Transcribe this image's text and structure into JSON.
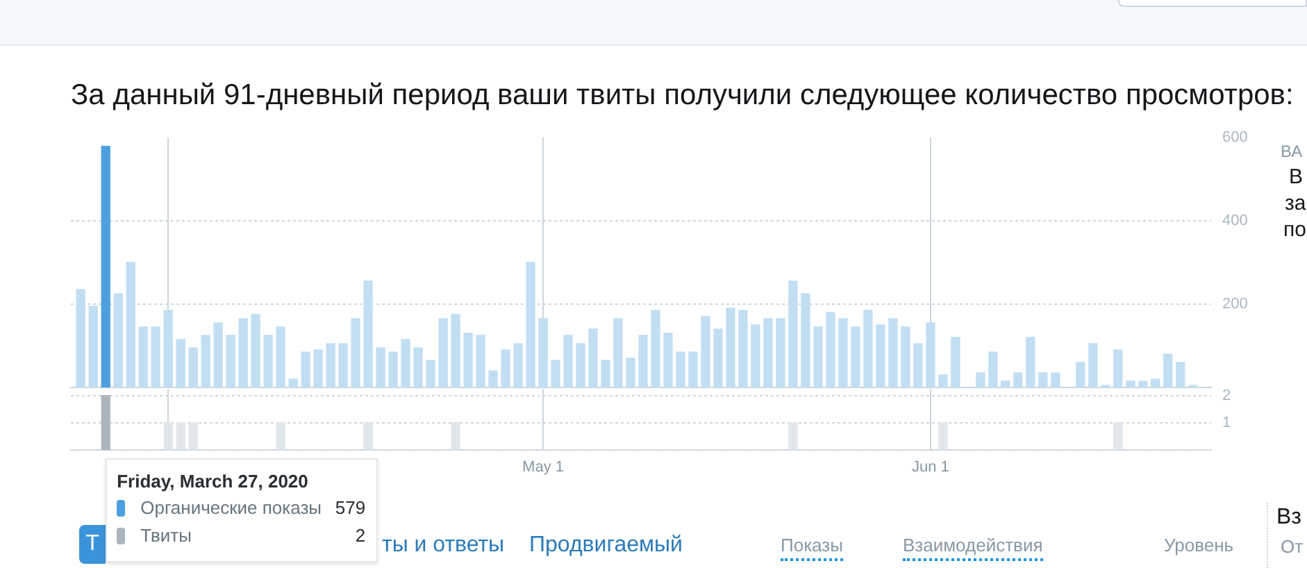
{
  "chart_data": [
    {
      "type": "bar",
      "title": "За данный 91-дневный период ваши твиты получили следующее количество просмотров:",
      "x": [
        "2020-03-25",
        "2020-03-26",
        "2020-03-27",
        "2020-03-28",
        "2020-03-29",
        "2020-03-30",
        "2020-03-31",
        "2020-04-01",
        "2020-04-02",
        "2020-04-03",
        "2020-04-04",
        "2020-04-05",
        "2020-04-06",
        "2020-04-07",
        "2020-04-08",
        "2020-04-09",
        "2020-04-10",
        "2020-04-11",
        "2020-04-12",
        "2020-04-13",
        "2020-04-14",
        "2020-04-15",
        "2020-04-16",
        "2020-04-17",
        "2020-04-18",
        "2020-04-19",
        "2020-04-20",
        "2020-04-21",
        "2020-04-22",
        "2020-04-23",
        "2020-04-24",
        "2020-04-25",
        "2020-04-26",
        "2020-04-27",
        "2020-04-28",
        "2020-04-29",
        "2020-04-30",
        "2020-05-01",
        "2020-05-02",
        "2020-05-03",
        "2020-05-04",
        "2020-05-05",
        "2020-05-06",
        "2020-05-07",
        "2020-05-08",
        "2020-05-09",
        "2020-05-10",
        "2020-05-11",
        "2020-05-12",
        "2020-05-13",
        "2020-05-14",
        "2020-05-15",
        "2020-05-16",
        "2020-05-17",
        "2020-05-18",
        "2020-05-19",
        "2020-05-20",
        "2020-05-21",
        "2020-05-22",
        "2020-05-23",
        "2020-05-24",
        "2020-05-25",
        "2020-05-26",
        "2020-05-27",
        "2020-05-28",
        "2020-05-29",
        "2020-05-30",
        "2020-05-31",
        "2020-06-01",
        "2020-06-02",
        "2020-06-03",
        "2020-06-04",
        "2020-06-05",
        "2020-06-06",
        "2020-06-07",
        "2020-06-08",
        "2020-06-09",
        "2020-06-10",
        "2020-06-11",
        "2020-06-12",
        "2020-06-13",
        "2020-06-14",
        "2020-06-15",
        "2020-06-16",
        "2020-06-17",
        "2020-06-18",
        "2020-06-19",
        "2020-06-20",
        "2020-06-21",
        "2020-06-22",
        "2020-06-23"
      ],
      "series": [
        {
          "name": "Органические показы",
          "values": [
            235,
            195,
            579,
            225,
            300,
            145,
            145,
            185,
            115,
            95,
            125,
            155,
            125,
            165,
            175,
            125,
            145,
            20,
            85,
            90,
            105,
            105,
            165,
            255,
            95,
            85,
            115,
            95,
            65,
            165,
            175,
            130,
            125,
            40,
            90,
            105,
            300,
            165,
            65,
            125,
            105,
            140,
            65,
            165,
            70,
            125,
            185,
            130,
            85,
            85,
            170,
            140,
            190,
            185,
            150,
            165,
            165,
            255,
            225,
            145,
            180,
            165,
            145,
            185,
            150,
            165,
            145,
            105,
            155,
            30,
            120,
            0,
            35,
            85,
            15,
            35,
            120,
            35,
            35,
            0,
            60,
            105,
            5,
            90,
            15,
            15,
            20,
            80,
            60,
            5,
            0
          ],
          "colors": [
            "#c1def3",
            "#c1def3",
            "#4ca0e0",
            "#c1def3",
            "#c1def3",
            "#c1def3",
            "#c1def3",
            "#c1def3",
            "#c1def3",
            "#c1def3",
            "#c1def3",
            "#c1def3",
            "#c1def3",
            "#c1def3",
            "#c1def3",
            "#c1def3",
            "#c1def3",
            "#c1def3",
            "#c1def3",
            "#c1def3",
            "#c1def3",
            "#c1def3",
            "#c1def3",
            "#c1def3",
            "#c1def3",
            "#c1def3",
            "#c1def3",
            "#c1def3",
            "#c1def3",
            "#c1def3",
            "#c1def3",
            "#c1def3",
            "#c1def3",
            "#c1def3",
            "#c1def3",
            "#c1def3",
            "#c1def3",
            "#c1def3",
            "#c1def3",
            "#c1def3",
            "#c1def3",
            "#c1def3",
            "#c1def3",
            "#c1def3",
            "#c1def3",
            "#c1def3",
            "#c1def3",
            "#c1def3",
            "#c1def3",
            "#c1def3",
            "#c1def3",
            "#c1def3",
            "#c1def3",
            "#c1def3",
            "#c1def3",
            "#c1def3",
            "#c1def3",
            "#c1def3",
            "#c1def3",
            "#c1def3",
            "#c1def3",
            "#c1def3",
            "#c1def3",
            "#c1def3",
            "#c1def3",
            "#c1def3",
            "#c1def3",
            "#c1def3",
            "#c1def3",
            "#c1def3",
            "#c1def3",
            "#c1def3",
            "#c1def3",
            "#c1def3",
            "#c1def3",
            "#c1def3",
            "#c1def3",
            "#c1def3",
            "#c1def3",
            "#c1def3",
            "#c1def3",
            "#c1def3",
            "#c1def3",
            "#c1def3",
            "#c1def3",
            "#c1def3",
            "#c1def3",
            "#c1def3",
            "#c1def3",
            "#c1def3",
            "#c1def3"
          ]
        }
      ],
      "xlim": [
        "2020-03-24T05:00",
        "2020-06-23T11:00"
      ],
      "xticks": [
        {
          "value": "2020-04-01",
          "label": null
        },
        {
          "value": "2020-05-01",
          "label": null
        },
        {
          "value": "2020-06-01",
          "label": null
        }
      ],
      "ylim": [
        0,
        600
      ],
      "yticks": [
        200,
        400,
        600
      ],
      "grid": true,
      "legend": "bottom left",
      "tick_labels": "y",
      "annotations": [
        "Friday, March 27, 2020",
        "579",
        "ВА",
        "В",
        "за",
        "по",
        "Т",
        "ты и ответы",
        "Продвигаемый",
        "Показы",
        "Взаимодействия",
        "Уровень",
        "Вз",
        "От"
      ]
    },
    {
      "type": "bar",
      "x": [
        "2020-03-25",
        "2020-03-26",
        "2020-03-27",
        "2020-03-28",
        "2020-03-29",
        "2020-03-30",
        "2020-03-31",
        "2020-04-01",
        "2020-04-02",
        "2020-04-03",
        "2020-04-04",
        "2020-04-05",
        "2020-04-06",
        "2020-04-07",
        "2020-04-08",
        "2020-04-09",
        "2020-04-10",
        "2020-04-11",
        "2020-04-12",
        "2020-04-13",
        "2020-04-14",
        "2020-04-15",
        "2020-04-16",
        "2020-04-17",
        "2020-04-18",
        "2020-04-19",
        "2020-04-20",
        "2020-04-21",
        "2020-04-22",
        "2020-04-23",
        "2020-04-24",
        "2020-04-25",
        "2020-04-26",
        "2020-04-27",
        "2020-04-28",
        "2020-04-29",
        "2020-04-30",
        "2020-05-01",
        "2020-05-02",
        "2020-05-03",
        "2020-05-04",
        "2020-05-05",
        "2020-05-06",
        "2020-05-07",
        "2020-05-08",
        "2020-05-09",
        "2020-05-10",
        "2020-05-11",
        "2020-05-12",
        "2020-05-13",
        "2020-05-14",
        "2020-05-15",
        "2020-05-16",
        "2020-05-17",
        "2020-05-18",
        "2020-05-19",
        "2020-05-20",
        "2020-05-21",
        "2020-05-22",
        "2020-05-23",
        "2020-05-24",
        "2020-05-25",
        "2020-05-26",
        "2020-05-27",
        "2020-05-28",
        "2020-05-29",
        "2020-05-30",
        "2020-05-31",
        "2020-06-01",
        "2020-06-02",
        "2020-06-03",
        "2020-06-04",
        "2020-06-05",
        "2020-06-06",
        "2020-06-07",
        "2020-06-08",
        "2020-06-09",
        "2020-06-10",
        "2020-06-11",
        "2020-06-12",
        "2020-06-13",
        "2020-06-14",
        "2020-06-15",
        "2020-06-16",
        "2020-06-17",
        "2020-06-18",
        "2020-06-19",
        "2020-06-20",
        "2020-06-21",
        "2020-06-22",
        "2020-06-23"
      ],
      "series": [
        {
          "name": "Твиты",
          "values": [
            0,
            0,
            2,
            0,
            0,
            0,
            0,
            1,
            1,
            1,
            0,
            0,
            0,
            0,
            0,
            0,
            1,
            0,
            0,
            0,
            0,
            0,
            0,
            1,
            0,
            0,
            0,
            0,
            0,
            0,
            1,
            0,
            0,
            0,
            0,
            0,
            0,
            0,
            0,
            0,
            0,
            0,
            0,
            0,
            0,
            0,
            0,
            0,
            0,
            0,
            0,
            0,
            0,
            0,
            0,
            0,
            0,
            1,
            0,
            0,
            0,
            0,
            0,
            0,
            0,
            0,
            0,
            0,
            0,
            1,
            0,
            0,
            0,
            0,
            0,
            0,
            0,
            0,
            0,
            0,
            0,
            0,
            0,
            1,
            0,
            0,
            0,
            0,
            0,
            0,
            0
          ],
          "colors": [
            "#e1e6ea",
            "#e1e6ea",
            "#aab5be",
            "#e1e6ea",
            "#e1e6ea",
            "#e1e6ea",
            "#e1e6ea",
            "#e1e6ea",
            "#e1e6ea",
            "#e1e6ea",
            "#e1e6ea",
            "#e1e6ea",
            "#e1e6ea",
            "#e1e6ea",
            "#e1e6ea",
            "#e1e6ea",
            "#e1e6ea",
            "#e1e6ea",
            "#e1e6ea",
            "#e1e6ea",
            "#e1e6ea",
            "#e1e6ea",
            "#e1e6ea",
            "#e1e6ea",
            "#e1e6ea",
            "#e1e6ea",
            "#e1e6ea",
            "#e1e6ea",
            "#e1e6ea",
            "#e1e6ea",
            "#e1e6ea",
            "#e1e6ea",
            "#e1e6ea",
            "#e1e6ea",
            "#e1e6ea",
            "#e1e6ea",
            "#e1e6ea",
            "#e1e6ea",
            "#e1e6ea",
            "#e1e6ea",
            "#e1e6ea",
            "#e1e6ea",
            "#e1e6ea",
            "#e1e6ea",
            "#e1e6ea",
            "#e1e6ea",
            "#e1e6ea",
            "#e1e6ea",
            "#e1e6ea",
            "#e1e6ea",
            "#e1e6ea",
            "#e1e6ea",
            "#e1e6ea",
            "#e1e6ea",
            "#e1e6ea",
            "#e1e6ea",
            "#e1e6ea",
            "#e1e6ea",
            "#e1e6ea",
            "#e1e6ea",
            "#e1e6ea",
            "#e1e6ea",
            "#e1e6ea",
            "#e1e6ea",
            "#e1e6ea",
            "#e1e6ea",
            "#e1e6ea",
            "#e1e6ea",
            "#e1e6ea",
            "#e1e6ea",
            "#e1e6ea",
            "#e1e6ea",
            "#e1e6ea",
            "#e1e6ea",
            "#e1e6ea",
            "#e1e6ea",
            "#e1e6ea",
            "#e1e6ea",
            "#e1e6ea",
            "#e1e6ea",
            "#e1e6ea",
            "#e1e6ea",
            "#e1e6ea",
            "#e1e6ea",
            "#e1e6ea",
            "#e1e6ea",
            "#e1e6ea",
            "#e1e6ea",
            "#e1e6ea",
            "#e1e6ea",
            "#e1e6ea"
          ]
        }
      ],
      "xlim": [
        "2020-03-24T05:00",
        "2020-06-23T11:00"
      ],
      "xticks": [
        {
          "value": "2020-04-01",
          "label": null
        },
        {
          "value": "2020-05-01",
          "label": "May 1"
        },
        {
          "value": "2020-06-01",
          "label": "Jun 1"
        }
      ],
      "ylim": [
        0,
        2.25
      ],
      "yticks": [
        1,
        2
      ],
      "grid": true,
      "legend": "bottom left",
      "annotations": [
        "2"
      ]
    }
  ]
}
